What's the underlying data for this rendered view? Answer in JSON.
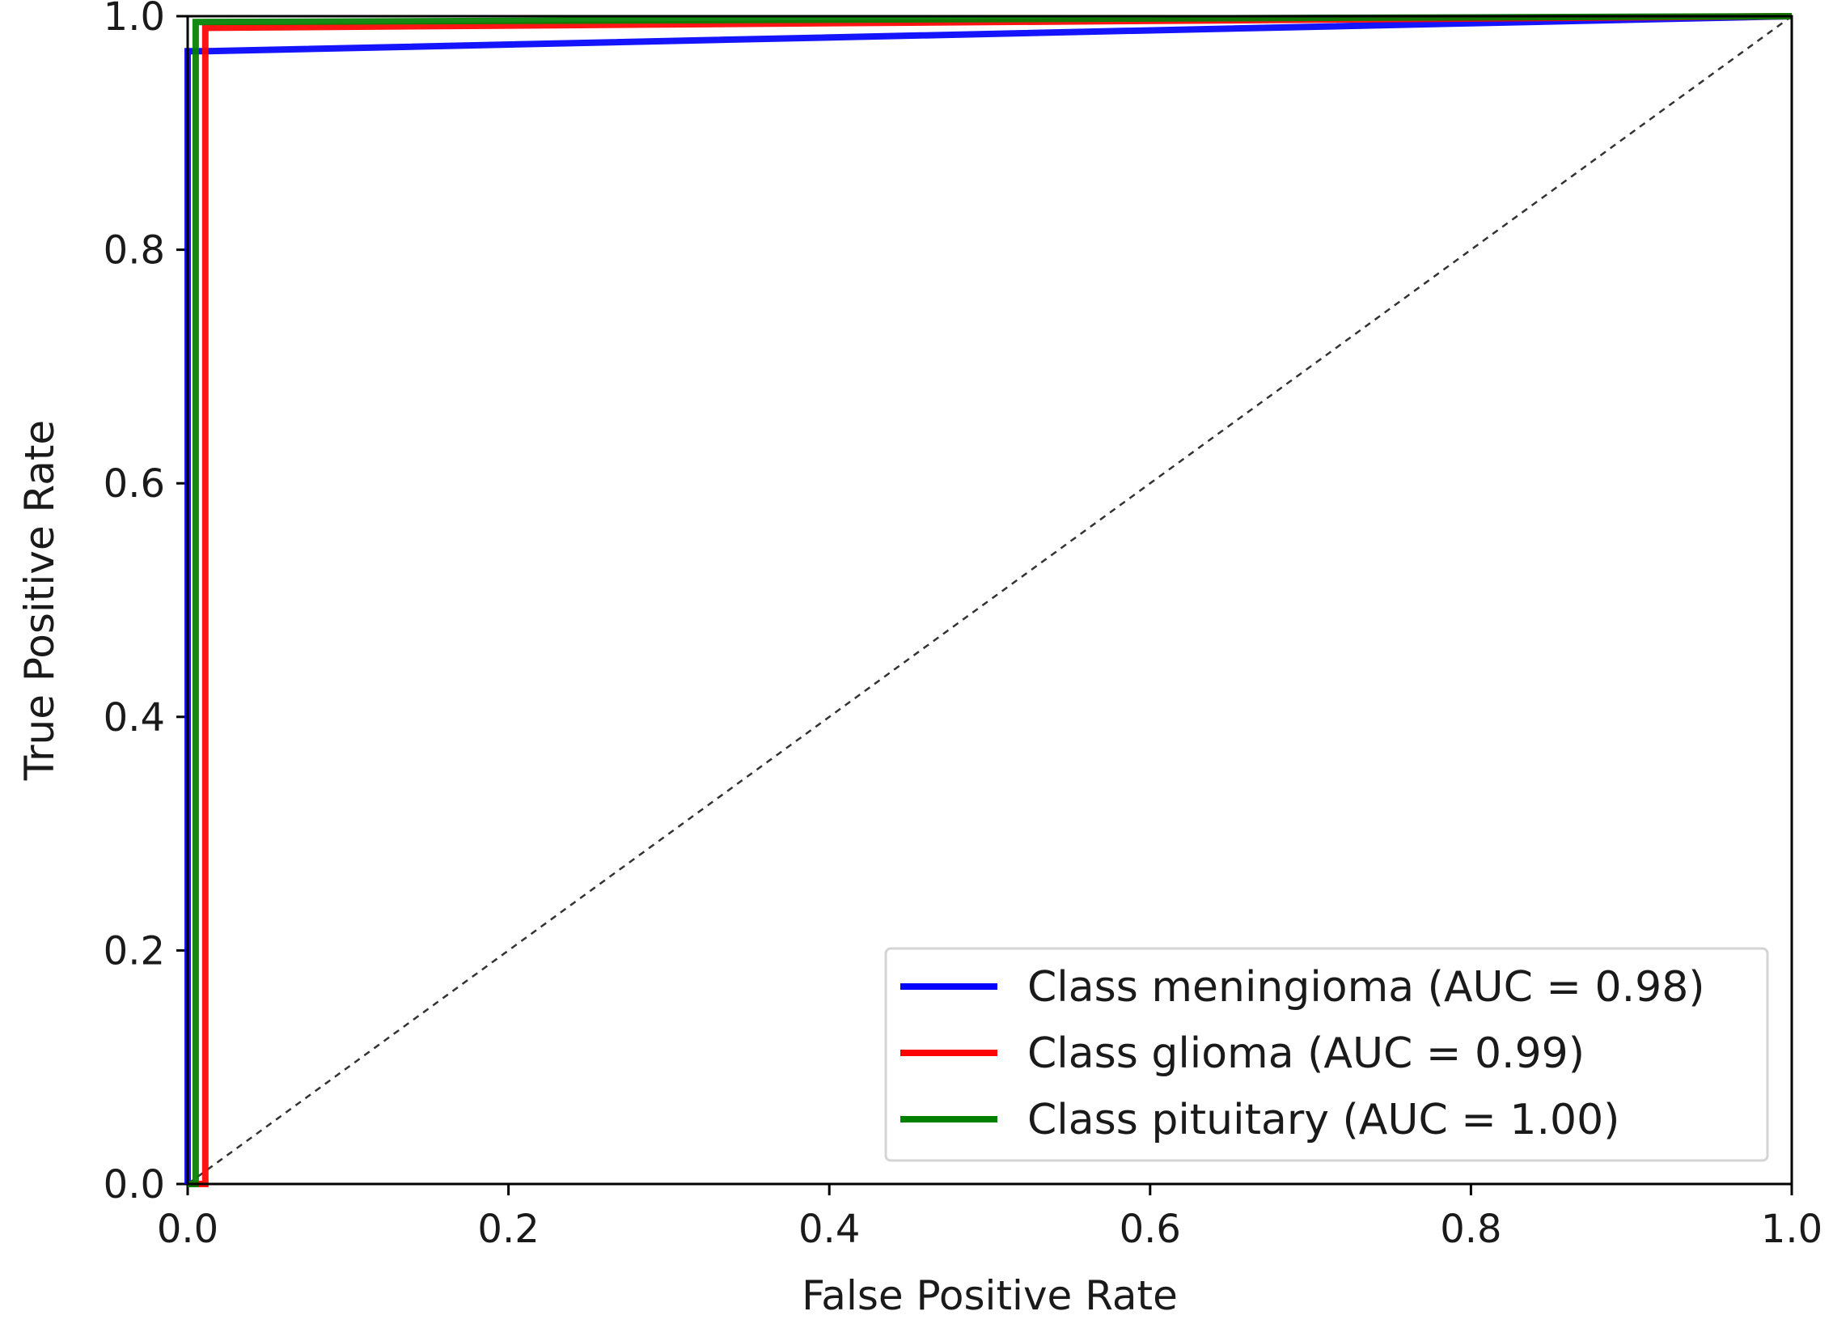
{
  "chart_data": {
    "type": "line",
    "title": "",
    "xlabel": "False Positive Rate",
    "ylabel": "True Positive Rate",
    "xlim": [
      0.0,
      1.0
    ],
    "ylim": [
      0.0,
      1.0
    ],
    "xticks": [
      "0.0",
      "0.2",
      "0.4",
      "0.6",
      "0.8",
      "1.0"
    ],
    "yticks": [
      "0.0",
      "0.2",
      "0.4",
      "0.6",
      "0.8",
      "1.0"
    ],
    "grid": false,
    "legend_position": "lower-right",
    "series": [
      {
        "name": "Class meningioma (AUC = 0.98)",
        "color": "#0000ff",
        "x": [
          0.0,
          0.0,
          0.012,
          1.0
        ],
        "y": [
          0.0,
          0.97,
          0.97,
          1.0
        ]
      },
      {
        "name": "Class glioma (AUC = 0.99)",
        "color": "#ff0000",
        "x": [
          0.0,
          0.011,
          0.011,
          1.0
        ],
        "y": [
          0.0,
          0.0,
          0.99,
          1.0
        ]
      },
      {
        "name": "Class pituitary (AUC = 1.00)",
        "color": "#008000",
        "x": [
          0.0,
          0.005,
          0.005,
          1.0
        ],
        "y": [
          0.0,
          0.0,
          0.995,
          1.0
        ]
      }
    ],
    "reference_line": {
      "name": "chance",
      "x": [
        0.0,
        1.0
      ],
      "y": [
        0.0,
        1.0
      ],
      "color": "#333333",
      "style": "dashed"
    }
  }
}
